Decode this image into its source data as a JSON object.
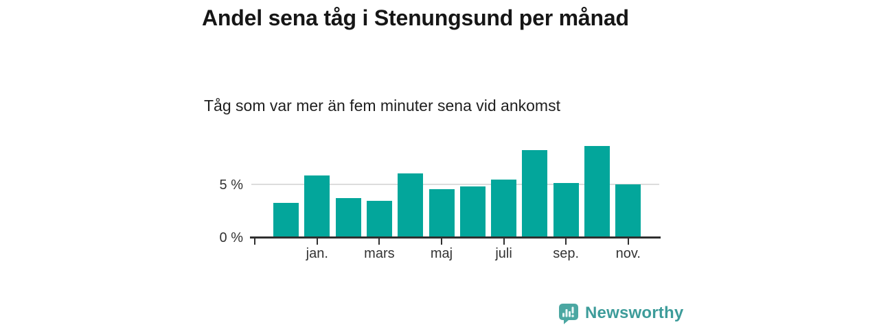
{
  "title": "Andel sena tåg i Stenungsund per månad",
  "subtitle": "Tåg som var mer än fem minuter sena vid ankomst",
  "branding": {
    "name": "Newsworthy",
    "icon": "bar-chart-speech-bubble-icon",
    "text_color": "#3d9c9a",
    "bubble_color": "#4ba7a2"
  },
  "colors": {
    "bar": "#03a69b",
    "axis": "#2f2f2f",
    "gridline": "#dcdcdc",
    "tick_text": "#333333"
  },
  "chart_data": {
    "type": "bar",
    "title": "Andel sena tåg i Stenungsund per månad",
    "subtitle": "Tåg som var mer än fem minuter sena vid ankomst",
    "categories": [
      "",
      "jan.",
      "",
      "mars",
      "",
      "maj",
      "",
      "juli",
      "",
      "sep.",
      "",
      "nov."
    ],
    "values": [
      3.2,
      5.8,
      3.7,
      3.4,
      6.0,
      4.5,
      4.8,
      5.4,
      8.2,
      5.1,
      8.6,
      5.0
    ],
    "unit": "%",
    "y_ticks": [
      {
        "value": 0,
        "label": "0 %"
      },
      {
        "value": 5,
        "label": "5 %"
      }
    ],
    "ylim": [
      0,
      9.2
    ],
    "grid": "horizontal line at 5 % only",
    "legend": "none",
    "bar_color": "#03a69b"
  }
}
